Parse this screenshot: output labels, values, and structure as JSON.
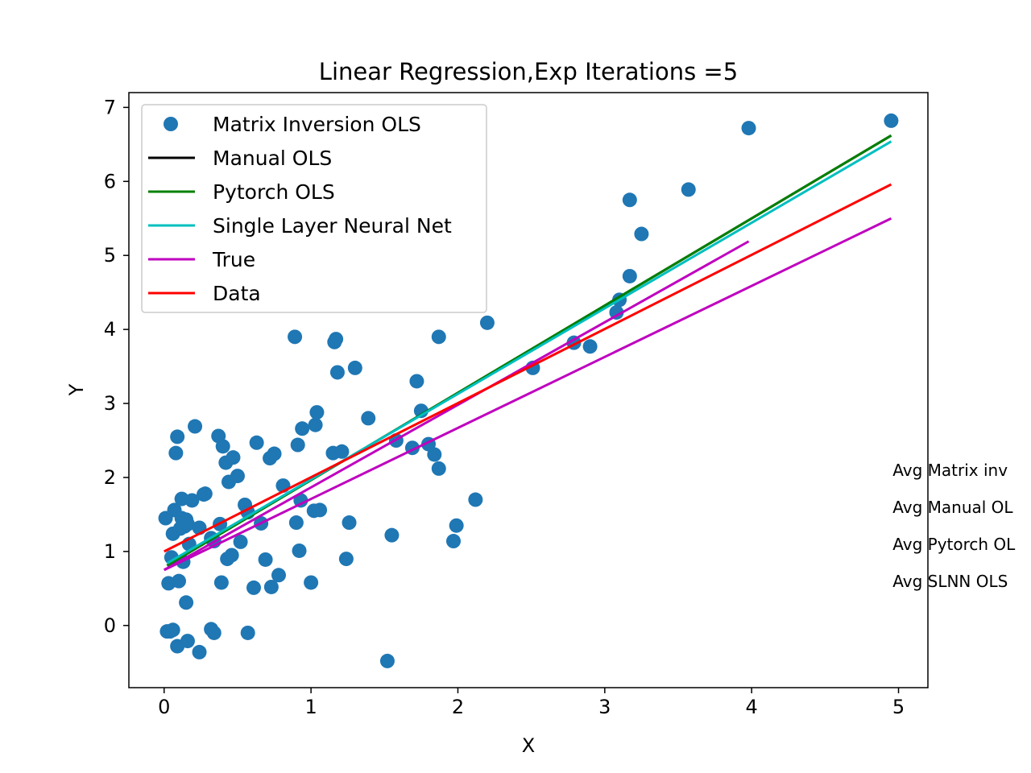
{
  "chart_data": {
    "type": "scatter",
    "title": "Linear Regression,Exp Iterations =5",
    "xlabel": "X",
    "ylabel": "Y",
    "xlim": [
      -0.24,
      5.2
    ],
    "ylim": [
      -0.84,
      7.2
    ],
    "x_ticks": [
      0,
      1,
      2,
      3,
      4,
      5
    ],
    "y_ticks": [
      0,
      1,
      2,
      3,
      4,
      5,
      6,
      7
    ],
    "grid": false,
    "legend_position": "top-left",
    "scatter": {
      "name": "Matrix Inversion OLS",
      "color": "#1f77b4",
      "x": [
        0.01,
        0.03,
        0.05,
        0.06,
        0.07,
        0.08,
        0.09,
        0.1,
        0.11,
        0.12,
        0.13,
        0.14,
        0.15,
        0.16,
        0.17,
        0.19,
        0.21,
        0.24,
        0.28,
        0.32,
        0.34,
        0.37,
        0.38,
        0.39,
        0.4,
        0.42,
        0.43,
        0.44,
        0.46,
        0.47,
        0.5,
        0.52,
        0.55,
        0.57,
        0.61,
        0.63,
        0.66,
        0.69,
        0.72,
        0.73,
        0.75,
        0.78,
        0.81,
        0.89,
        0.9,
        0.91,
        0.92,
        0.93,
        0.94,
        1.0,
        1.02,
        1.03,
        1.04,
        1.06,
        1.15,
        1.16,
        1.17,
        1.18,
        1.21,
        1.24,
        1.26,
        1.3,
        1.39,
        1.52,
        1.55,
        1.58,
        1.69,
        1.72,
        1.75,
        1.8,
        1.84,
        1.87,
        1.87,
        1.97,
        1.99,
        2.12,
        2.2,
        2.51,
        2.79,
        2.9,
        3.08,
        3.1,
        3.17,
        3.17,
        3.25,
        3.57,
        3.98,
        4.95,
        0.02,
        0.04,
        0.06,
        0.09,
        0.16,
        0.24,
        0.32,
        0.34,
        0.57,
        0.15,
        0.12,
        0.27
      ],
      "y": [
        1.45,
        0.57,
        0.92,
        1.24,
        1.56,
        2.33,
        2.55,
        0.6,
        1.31,
        1.71,
        0.86,
        1.34,
        0.31,
        1.37,
        1.1,
        1.69,
        2.69,
        1.32,
        1.78,
        1.18,
        1.14,
        2.56,
        1.37,
        0.58,
        2.42,
        2.2,
        0.9,
        1.94,
        0.95,
        2.27,
        2.02,
        1.13,
        1.63,
        1.53,
        0.51,
        2.47,
        1.38,
        0.89,
        2.26,
        0.52,
        2.32,
        0.68,
        1.89,
        3.9,
        1.39,
        2.44,
        1.01,
        1.69,
        2.66,
        0.58,
        1.55,
        2.71,
        2.88,
        1.56,
        2.33,
        3.83,
        3.87,
        3.42,
        2.35,
        0.9,
        1.39,
        3.48,
        2.8,
        -0.48,
        1.22,
        2.5,
        2.4,
        3.3,
        2.9,
        2.45,
        2.31,
        2.12,
        3.9,
        1.14,
        1.35,
        1.7,
        4.09,
        3.48,
        3.82,
        3.77,
        4.23,
        4.4,
        5.75,
        4.72,
        5.29,
        5.89,
        6.72,
        6.82,
        -0.08,
        -0.08,
        -0.06,
        -0.28,
        -0.21,
        -0.36,
        -0.05,
        -0.1,
        -0.1,
        1.43,
        1.45,
        1.77
      ]
    },
    "series": [
      {
        "name": "Manual OLS",
        "color": "#000000",
        "x": [
          0.02,
          4.95
        ],
        "y": [
          0.81,
          6.62
        ]
      },
      {
        "name": "Pytorch OLS",
        "color": "#008000",
        "x": [
          0.02,
          4.95
        ],
        "y": [
          0.81,
          6.62
        ]
      },
      {
        "name": "Single Layer Neural Net",
        "color": "#00bfbf",
        "x": [
          0.02,
          4.95
        ],
        "y": [
          0.84,
          6.54
        ]
      },
      {
        "name": "True",
        "color": "#bf00bf",
        "x": [
          0.0,
          4.95
        ],
        "y": [
          0.75,
          5.5
        ]
      },
      {
        "name": "True",
        "color": "#bf00bf",
        "x": [
          0.0,
          3.98
        ],
        "y": [
          0.75,
          5.19
        ]
      },
      {
        "name": "Data",
        "color": "#ff0000",
        "x": [
          0.0,
          4.95
        ],
        "y": [
          1.0,
          5.96
        ]
      }
    ],
    "legend": [
      "Matrix Inversion OLS",
      "Manual OLS",
      "Pytorch OLS",
      "Single Layer Neural Net",
      "True",
      "Data"
    ],
    "annotations": [
      {
        "text": "Avg Matrix inv",
        "x": 4.96,
        "y": 2.0
      },
      {
        "text": "Avg Manual OL",
        "x": 4.96,
        "y": 1.5
      },
      {
        "text": "Avg Pytorch OL",
        "x": 4.96,
        "y": 1.0
      },
      {
        "text": "Avg SLNN OLS",
        "x": 4.96,
        "y": 0.5
      }
    ]
  }
}
